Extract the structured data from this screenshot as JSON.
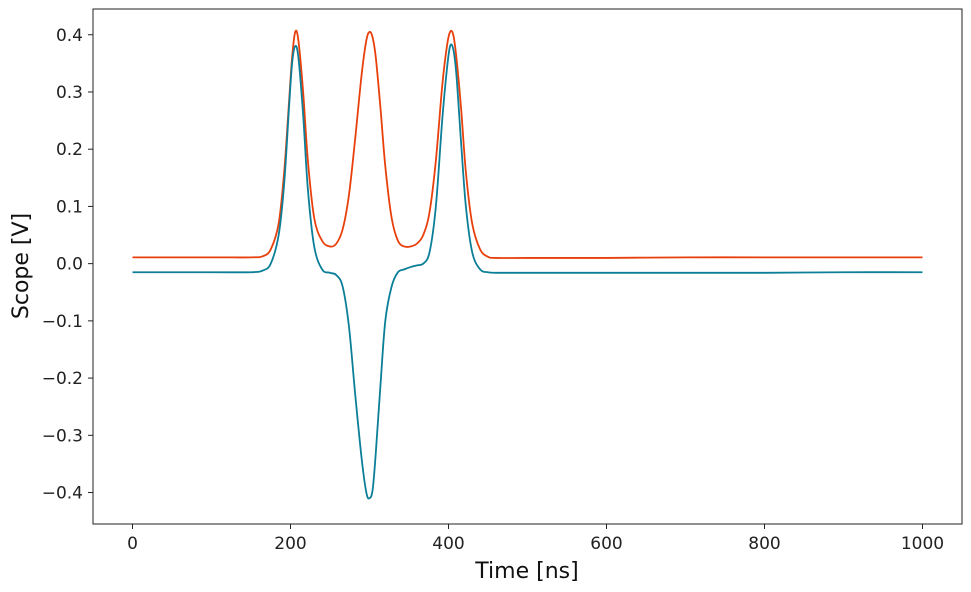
{
  "chart_data": {
    "type": "line",
    "title": "",
    "xlabel": "Time [ns]",
    "ylabel": "Scope [V]",
    "xlim": [
      -50,
      1050
    ],
    "ylim": [
      -0.455,
      0.445
    ],
    "x_ticks": [
      0,
      200,
      400,
      600,
      800,
      1000
    ],
    "x_tick_labels": [
      "0",
      "200",
      "400",
      "600",
      "800",
      "1000"
    ],
    "y_ticks": [
      0.4,
      0.3,
      0.2,
      0.1,
      0.0,
      -0.1,
      -0.2,
      -0.3,
      -0.4
    ],
    "y_tick_labels": [
      "0.4",
      "0.3",
      "0.2",
      "0.1",
      "0.0",
      "−0.1",
      "−0.2",
      "−0.3",
      "−0.4"
    ],
    "grid": false,
    "legend": "none",
    "series": [
      {
        "name": "orange trace",
        "color": "#e8400c",
        "x": [
          0,
          100,
          150,
          165,
          175,
          185,
          192,
          198,
          202,
          206,
          210,
          216,
          222,
          230,
          240,
          250,
          258,
          266,
          274,
          282,
          290,
          296,
          300,
          304,
          308,
          314,
          320,
          328,
          336,
          344,
          352,
          360,
          368,
          376,
          384,
          392,
          398,
          402,
          406,
          410,
          416,
          422,
          430,
          440,
          450,
          460,
          500,
          600,
          700,
          800,
          900,
          1000
        ],
        "values": [
          0.011,
          0.011,
          0.011,
          0.013,
          0.025,
          0.07,
          0.16,
          0.28,
          0.36,
          0.405,
          0.39,
          0.3,
          0.18,
          0.08,
          0.04,
          0.03,
          0.035,
          0.06,
          0.12,
          0.22,
          0.33,
          0.39,
          0.405,
          0.395,
          0.36,
          0.27,
          0.17,
          0.08,
          0.04,
          0.03,
          0.03,
          0.035,
          0.05,
          0.09,
          0.18,
          0.31,
          0.38,
          0.405,
          0.4,
          0.36,
          0.27,
          0.16,
          0.07,
          0.025,
          0.012,
          0.01,
          0.01,
          0.01,
          0.011,
          0.011,
          0.011,
          0.011
        ]
      },
      {
        "name": "teal trace",
        "color": "#0b7e98",
        "x": [
          0,
          100,
          150,
          165,
          175,
          185,
          192,
          198,
          202,
          206,
          210,
          216,
          222,
          230,
          240,
          250,
          258,
          266,
          274,
          282,
          290,
          296,
          300,
          304,
          308,
          314,
          320,
          328,
          336,
          344,
          352,
          360,
          368,
          376,
          384,
          392,
          398,
          402,
          406,
          410,
          416,
          422,
          430,
          440,
          450,
          460,
          500,
          600,
          700,
          800,
          900,
          1000
        ],
        "values": [
          -0.015,
          -0.015,
          -0.015,
          -0.012,
          0.0,
          0.05,
          0.14,
          0.27,
          0.35,
          0.38,
          0.36,
          0.26,
          0.13,
          0.03,
          -0.01,
          -0.016,
          -0.02,
          -0.04,
          -0.11,
          -0.23,
          -0.34,
          -0.4,
          -0.41,
          -0.395,
          -0.33,
          -0.21,
          -0.1,
          -0.04,
          -0.015,
          -0.01,
          -0.006,
          -0.003,
          0.0,
          0.02,
          0.1,
          0.25,
          0.34,
          0.38,
          0.375,
          0.33,
          0.21,
          0.1,
          0.02,
          -0.01,
          -0.015,
          -0.016,
          -0.016,
          -0.016,
          -0.016,
          -0.016,
          -0.015,
          -0.015
        ]
      }
    ]
  }
}
